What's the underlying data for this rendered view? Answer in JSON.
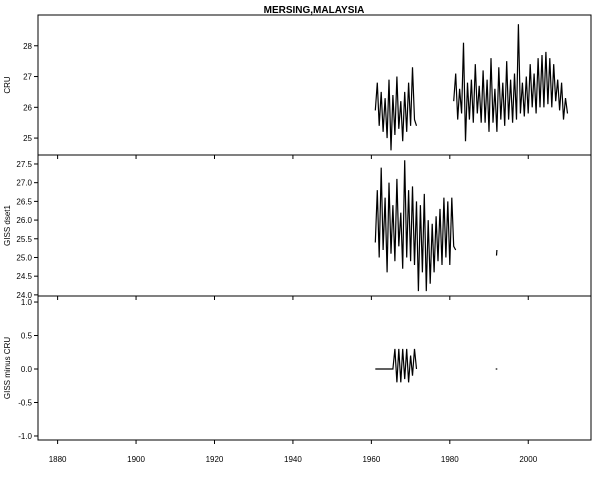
{
  "chart_data": [
    {
      "type": "line",
      "title": "MERSING,MALAYSIA",
      "ylabel": "CRU",
      "xlim": [
        1875,
        2016
      ],
      "ylim": [
        24.45,
        29.0
      ],
      "yticks": [
        "25",
        "26",
        "27",
        "28"
      ],
      "series": [
        {
          "segments": [
            {
              "x_start": 1961,
              "step": 0.5,
              "values": [
                25.9,
                26.8,
                25.4,
                26.5,
                25.2,
                26.3,
                25.0,
                26.9,
                24.6,
                26.4,
                25.1,
                27.0,
                25.3,
                26.2,
                24.9,
                26.5,
                25.2,
                26.8,
                25.4,
                27.3,
                25.6,
                25.4
              ]
            },
            {
              "x_start": 1981,
              "step": 0.5,
              "values": [
                26.2,
                27.1,
                25.6,
                26.6,
                25.8,
                28.1,
                24.9,
                26.8,
                25.6,
                26.9,
                25.5,
                27.4,
                25.8,
                26.7,
                25.5,
                27.2,
                25.5,
                26.9,
                25.2,
                27.6,
                25.5,
                26.6,
                25.2,
                27.3,
                25.6,
                26.8,
                25.4,
                27.5,
                25.6,
                26.9,
                25.5,
                27.1,
                25.6,
                28.7,
                25.8,
                26.8,
                25.7,
                27.0,
                25.8,
                27.4,
                26.0,
                27.1,
                25.8,
                27.6,
                26.0,
                27.7,
                26.0,
                27.8,
                26.1,
                27.6,
                26.0,
                27.4,
                26.2,
                26.9,
                25.9,
                26.8,
                25.6,
                26.3,
                25.8
              ]
            }
          ]
        }
      ]
    },
    {
      "type": "line",
      "ylabel": "GISS dset1",
      "xlim": [
        1875,
        2016
      ],
      "ylim": [
        23.97,
        27.74
      ],
      "yticks": [
        "24.0",
        "24.5",
        "25.0",
        "25.5",
        "26.0",
        "26.5",
        "27.0",
        "27.5"
      ],
      "series": [
        {
          "segments": [
            {
              "x_start": 1961,
              "step": 0.5,
              "values": [
                25.4,
                26.8,
                25.0,
                27.4,
                25.2,
                26.6,
                24.6,
                27.0,
                25.1,
                26.4,
                24.9,
                27.1,
                25.3,
                26.2,
                24.7,
                27.6,
                25.0,
                26.8,
                24.9,
                26.9,
                24.8,
                26.5,
                24.1,
                26.4,
                24.6,
                26.7,
                24.1,
                26.0,
                24.3,
                25.9,
                24.6,
                26.1,
                24.9,
                26.3,
                24.8,
                26.6,
                25.0,
                26.5,
                24.8,
                26.6,
                25.3,
                25.2
              ]
            },
            {
              "x_start": 1991.9,
              "step": 0.1,
              "values": [
                25.05,
                25.2
              ]
            }
          ]
        }
      ]
    },
    {
      "type": "line",
      "ylabel": "GISS minus CRU",
      "xlim": [
        1875,
        2016
      ],
      "ylim": [
        -1.06,
        1.09
      ],
      "yticks": [
        "-1.0",
        "-0.5",
        "0.0",
        "0.5",
        "1.0"
      ],
      "xticks": [
        "1880",
        "1900",
        "1920",
        "1940",
        "1960",
        "1980",
        "2000"
      ],
      "series": [
        {
          "segments": [
            {
              "x_start": 1961,
              "step": 0.5,
              "values": [
                0,
                0,
                0,
                0,
                0,
                0,
                0,
                0,
                0,
                0,
                0.3,
                -0.2,
                0.3,
                -0.2,
                0.3,
                -0.15,
                0.3,
                -0.2,
                0.2,
                -0.1,
                0.3,
                0.0
              ]
            },
            {
              "x_start": 1991.7,
              "step": 0.4,
              "values": [
                0,
                0
              ]
            }
          ]
        }
      ]
    }
  ]
}
